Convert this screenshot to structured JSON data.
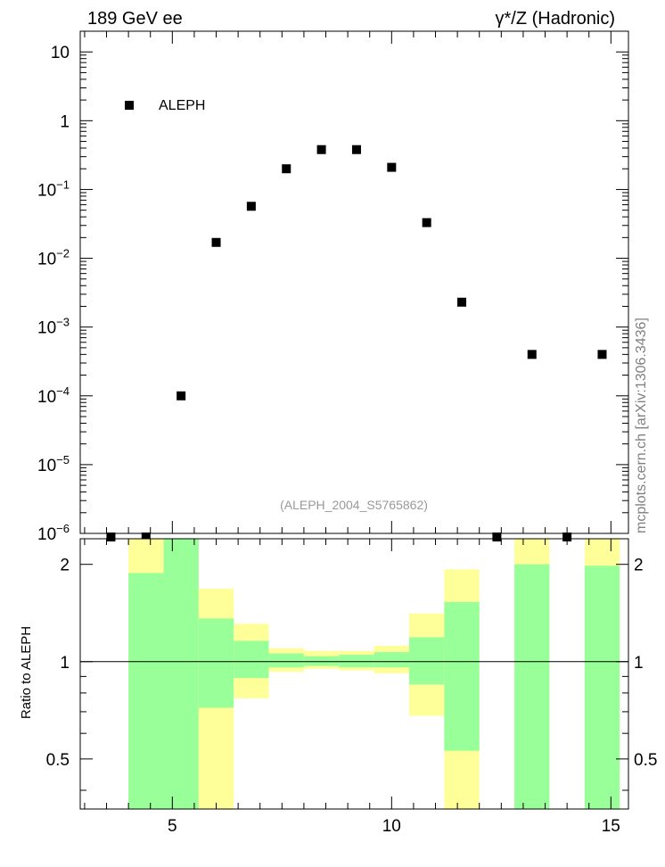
{
  "header": {
    "left_title": "189 GeV ee",
    "right_title": "γ*/Z (Hadronic)",
    "watermark": "mcplots.cern.ch [arXiv:1306.3436]",
    "analysis_id": "(ALEPH_2004_S5765862)"
  },
  "chart_data": {
    "type": "scatter",
    "legend": {
      "label": "ALEPH",
      "placement": "top-left"
    },
    "top_panel": {
      "y_scale": "log",
      "ylim": [
        1e-06,
        20
      ],
      "y_ticks": [
        {
          "value": 10,
          "base": "10",
          "exp": ""
        },
        {
          "value": 1,
          "base": "1",
          "exp": ""
        },
        {
          "value": 0.1,
          "base": "10",
          "exp": "−1"
        },
        {
          "value": 0.01,
          "base": "10",
          "exp": "−2"
        },
        {
          "value": 0.001,
          "base": "10",
          "exp": "−3"
        },
        {
          "value": 0.0001,
          "base": "10",
          "exp": "−4"
        },
        {
          "value": 1e-05,
          "base": "10",
          "exp": "−5"
        },
        {
          "value": 1e-06,
          "base": "10",
          "exp": "−6"
        }
      ],
      "series": [
        {
          "name": "ALEPH",
          "x": [
            3.6,
            4.4,
            5.2,
            6.0,
            6.8,
            7.6,
            8.4,
            9.2,
            10.0,
            10.8,
            11.6,
            12.4,
            13.2,
            14.0,
            14.8
          ],
          "y": [
            1e-06,
            1e-06,
            0.0001,
            0.017,
            0.057,
            0.2,
            0.38,
            0.38,
            0.21,
            0.033,
            0.0023,
            1e-06,
            0.0004,
            1e-06,
            0.0004
          ]
        }
      ]
    },
    "ratio_panel": {
      "ylabel": "Ratio to ALEPH",
      "y_scale": "log",
      "ylim": [
        0.35,
        2.4
      ],
      "reference_line": 1,
      "y_ticks": [
        {
          "value": 2,
          "label": "2"
        },
        {
          "value": 1,
          "label": "1"
        },
        {
          "value": 0.5,
          "label": "0.5"
        }
      ],
      "bands": [
        {
          "x_low": 4.0,
          "x_high": 4.8,
          "yellow": [
            0.35,
            2.4
          ],
          "green": [
            0.35,
            1.88
          ]
        },
        {
          "x_low": 4.8,
          "x_high": 5.6,
          "yellow": [
            0.35,
            2.4
          ],
          "green": [
            0.35,
            2.4
          ]
        },
        {
          "x_low": 5.6,
          "x_high": 6.4,
          "yellow": [
            0.35,
            1.68
          ],
          "green": [
            0.72,
            1.36
          ]
        },
        {
          "x_low": 6.4,
          "x_high": 7.2,
          "yellow": [
            0.77,
            1.31
          ],
          "green": [
            0.89,
            1.16
          ]
        },
        {
          "x_low": 7.2,
          "x_high": 8.0,
          "yellow": [
            0.93,
            1.1
          ],
          "green": [
            0.96,
            1.06
          ]
        },
        {
          "x_low": 8.0,
          "x_high": 8.8,
          "yellow": [
            0.95,
            1.08
          ],
          "green": [
            0.97,
            1.04
          ]
        },
        {
          "x_low": 8.8,
          "x_high": 9.6,
          "yellow": [
            0.94,
            1.08
          ],
          "green": [
            0.96,
            1.05
          ]
        },
        {
          "x_low": 9.6,
          "x_high": 10.4,
          "yellow": [
            0.92,
            1.12
          ],
          "green": [
            0.96,
            1.07
          ]
        },
        {
          "x_low": 10.4,
          "x_high": 11.2,
          "yellow": [
            0.68,
            1.41
          ],
          "green": [
            0.85,
            1.19
          ]
        },
        {
          "x_low": 11.2,
          "x_high": 12.0,
          "yellow": [
            0.35,
            1.93
          ],
          "green": [
            0.53,
            1.53
          ]
        },
        {
          "x_low": 12.8,
          "x_high": 13.6,
          "yellow": [
            0.35,
            2.4
          ],
          "green": [
            0.35,
            2.0
          ]
        },
        {
          "x_low": 14.4,
          "x_high": 15.2,
          "yellow": [
            0.35,
            2.4
          ],
          "green": [
            0.35,
            1.98
          ]
        }
      ]
    },
    "x_axis": {
      "xlim": [
        2.9,
        15.4
      ],
      "major_ticks": [
        5,
        10,
        15
      ],
      "tick_labels": [
        "5",
        "10",
        "15"
      ]
    },
    "colors": {
      "marker": "#000000",
      "band_outer": "#ffff99",
      "band_inner": "#99ff99",
      "watermark": "#808080",
      "analysis_id": "#999999"
    }
  }
}
